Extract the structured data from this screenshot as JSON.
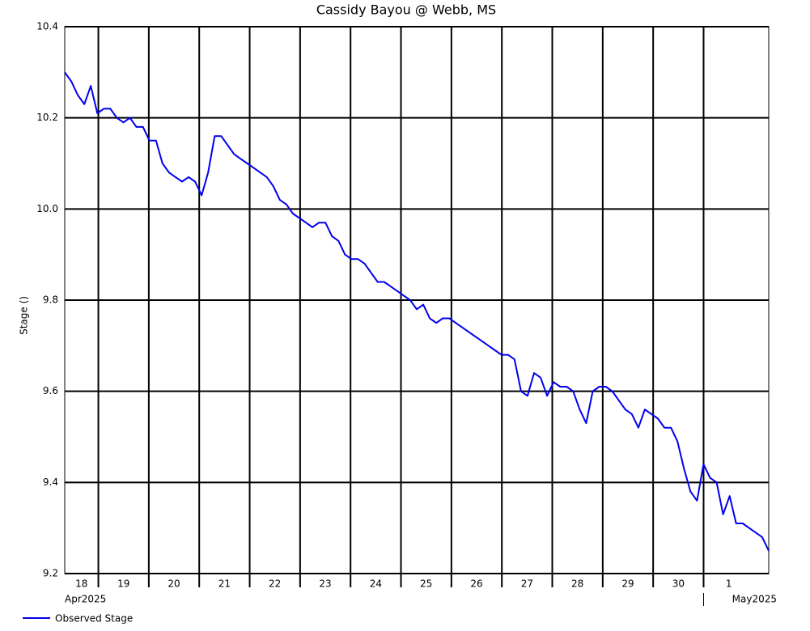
{
  "chart_data": {
    "type": "line",
    "title": "Cassidy Bayou @ Webb, MS",
    "y_label": "Stage ()",
    "xlim": [
      "2025-04-18T08:00",
      "2025-05-02T07:00"
    ],
    "xticks": [
      {
        "value": "2025-04-18T00:00",
        "label": "18"
      },
      {
        "value": "2025-04-19T00:00",
        "label": "19"
      },
      {
        "value": "2025-04-20T00:00",
        "label": "20"
      },
      {
        "value": "2025-04-21T00:00",
        "label": "21"
      },
      {
        "value": "2025-04-22T00:00",
        "label": "22"
      },
      {
        "value": "2025-04-23T00:00",
        "label": "23"
      },
      {
        "value": "2025-04-24T00:00",
        "label": "24"
      },
      {
        "value": "2025-04-25T00:00",
        "label": "25"
      },
      {
        "value": "2025-04-26T00:00",
        "label": "26"
      },
      {
        "value": "2025-04-27T00:00",
        "label": "27"
      },
      {
        "value": "2025-04-28T00:00",
        "label": "28"
      },
      {
        "value": "2025-04-29T00:00",
        "label": "29"
      },
      {
        "value": "2025-04-30T00:00",
        "label": "30"
      },
      {
        "value": "2025-05-01T00:00",
        "label": "1"
      }
    ],
    "month_labels": [
      {
        "value": "2025-04-18T08:00",
        "label": "Apr2025"
      },
      {
        "value": "2025-05-01T00:00",
        "label": "May2025"
      }
    ],
    "ylim": [
      9.2,
      10.4
    ],
    "yticks": [
      9.2,
      9.4,
      9.6,
      9.8,
      {
        "value": 10,
        "label": "10.0"
      },
      10.2,
      10.4
    ],
    "grid": true,
    "series": [
      {
        "name": "Observed Stage",
        "color": "#0000ee",
        "values": [
          10.3,
          10.28,
          10.25,
          10.23,
          10.27,
          10.21,
          10.22,
          10.22,
          10.2,
          10.19,
          10.2,
          10.18,
          10.18,
          10.15,
          10.15,
          10.1,
          10.08,
          10.07,
          10.06,
          10.07,
          10.06,
          10.03,
          10.08,
          10.16,
          10.16,
          10.14,
          10.12,
          10.11,
          10.1,
          10.09,
          10.08,
          10.07,
          10.05,
          10.02,
          10.01,
          9.99,
          9.98,
          9.97,
          9.96,
          9.97,
          9.97,
          9.94,
          9.93,
          9.9,
          9.89,
          9.89,
          9.88,
          9.86,
          9.84,
          9.84,
          9.83,
          9.82,
          9.81,
          9.8,
          9.78,
          9.79,
          9.76,
          9.75,
          9.76,
          9.76,
          9.75,
          9.74,
          9.73,
          9.72,
          9.71,
          9.7,
          9.69,
          9.68,
          9.68,
          9.67,
          9.6,
          9.59,
          9.64,
          9.63,
          9.59,
          9.62,
          9.61,
          9.61,
          9.6,
          9.56,
          9.53,
          9.6,
          9.61,
          9.61,
          9.6,
          9.58,
          9.56,
          9.55,
          9.52,
          9.56,
          9.55,
          9.54,
          9.52,
          9.52,
          9.49,
          9.43,
          9.38,
          9.36,
          9.44,
          9.41,
          9.4,
          9.33,
          9.37,
          9.31,
          9.31,
          9.3,
          9.29,
          9.28,
          9.25
        ]
      }
    ]
  }
}
